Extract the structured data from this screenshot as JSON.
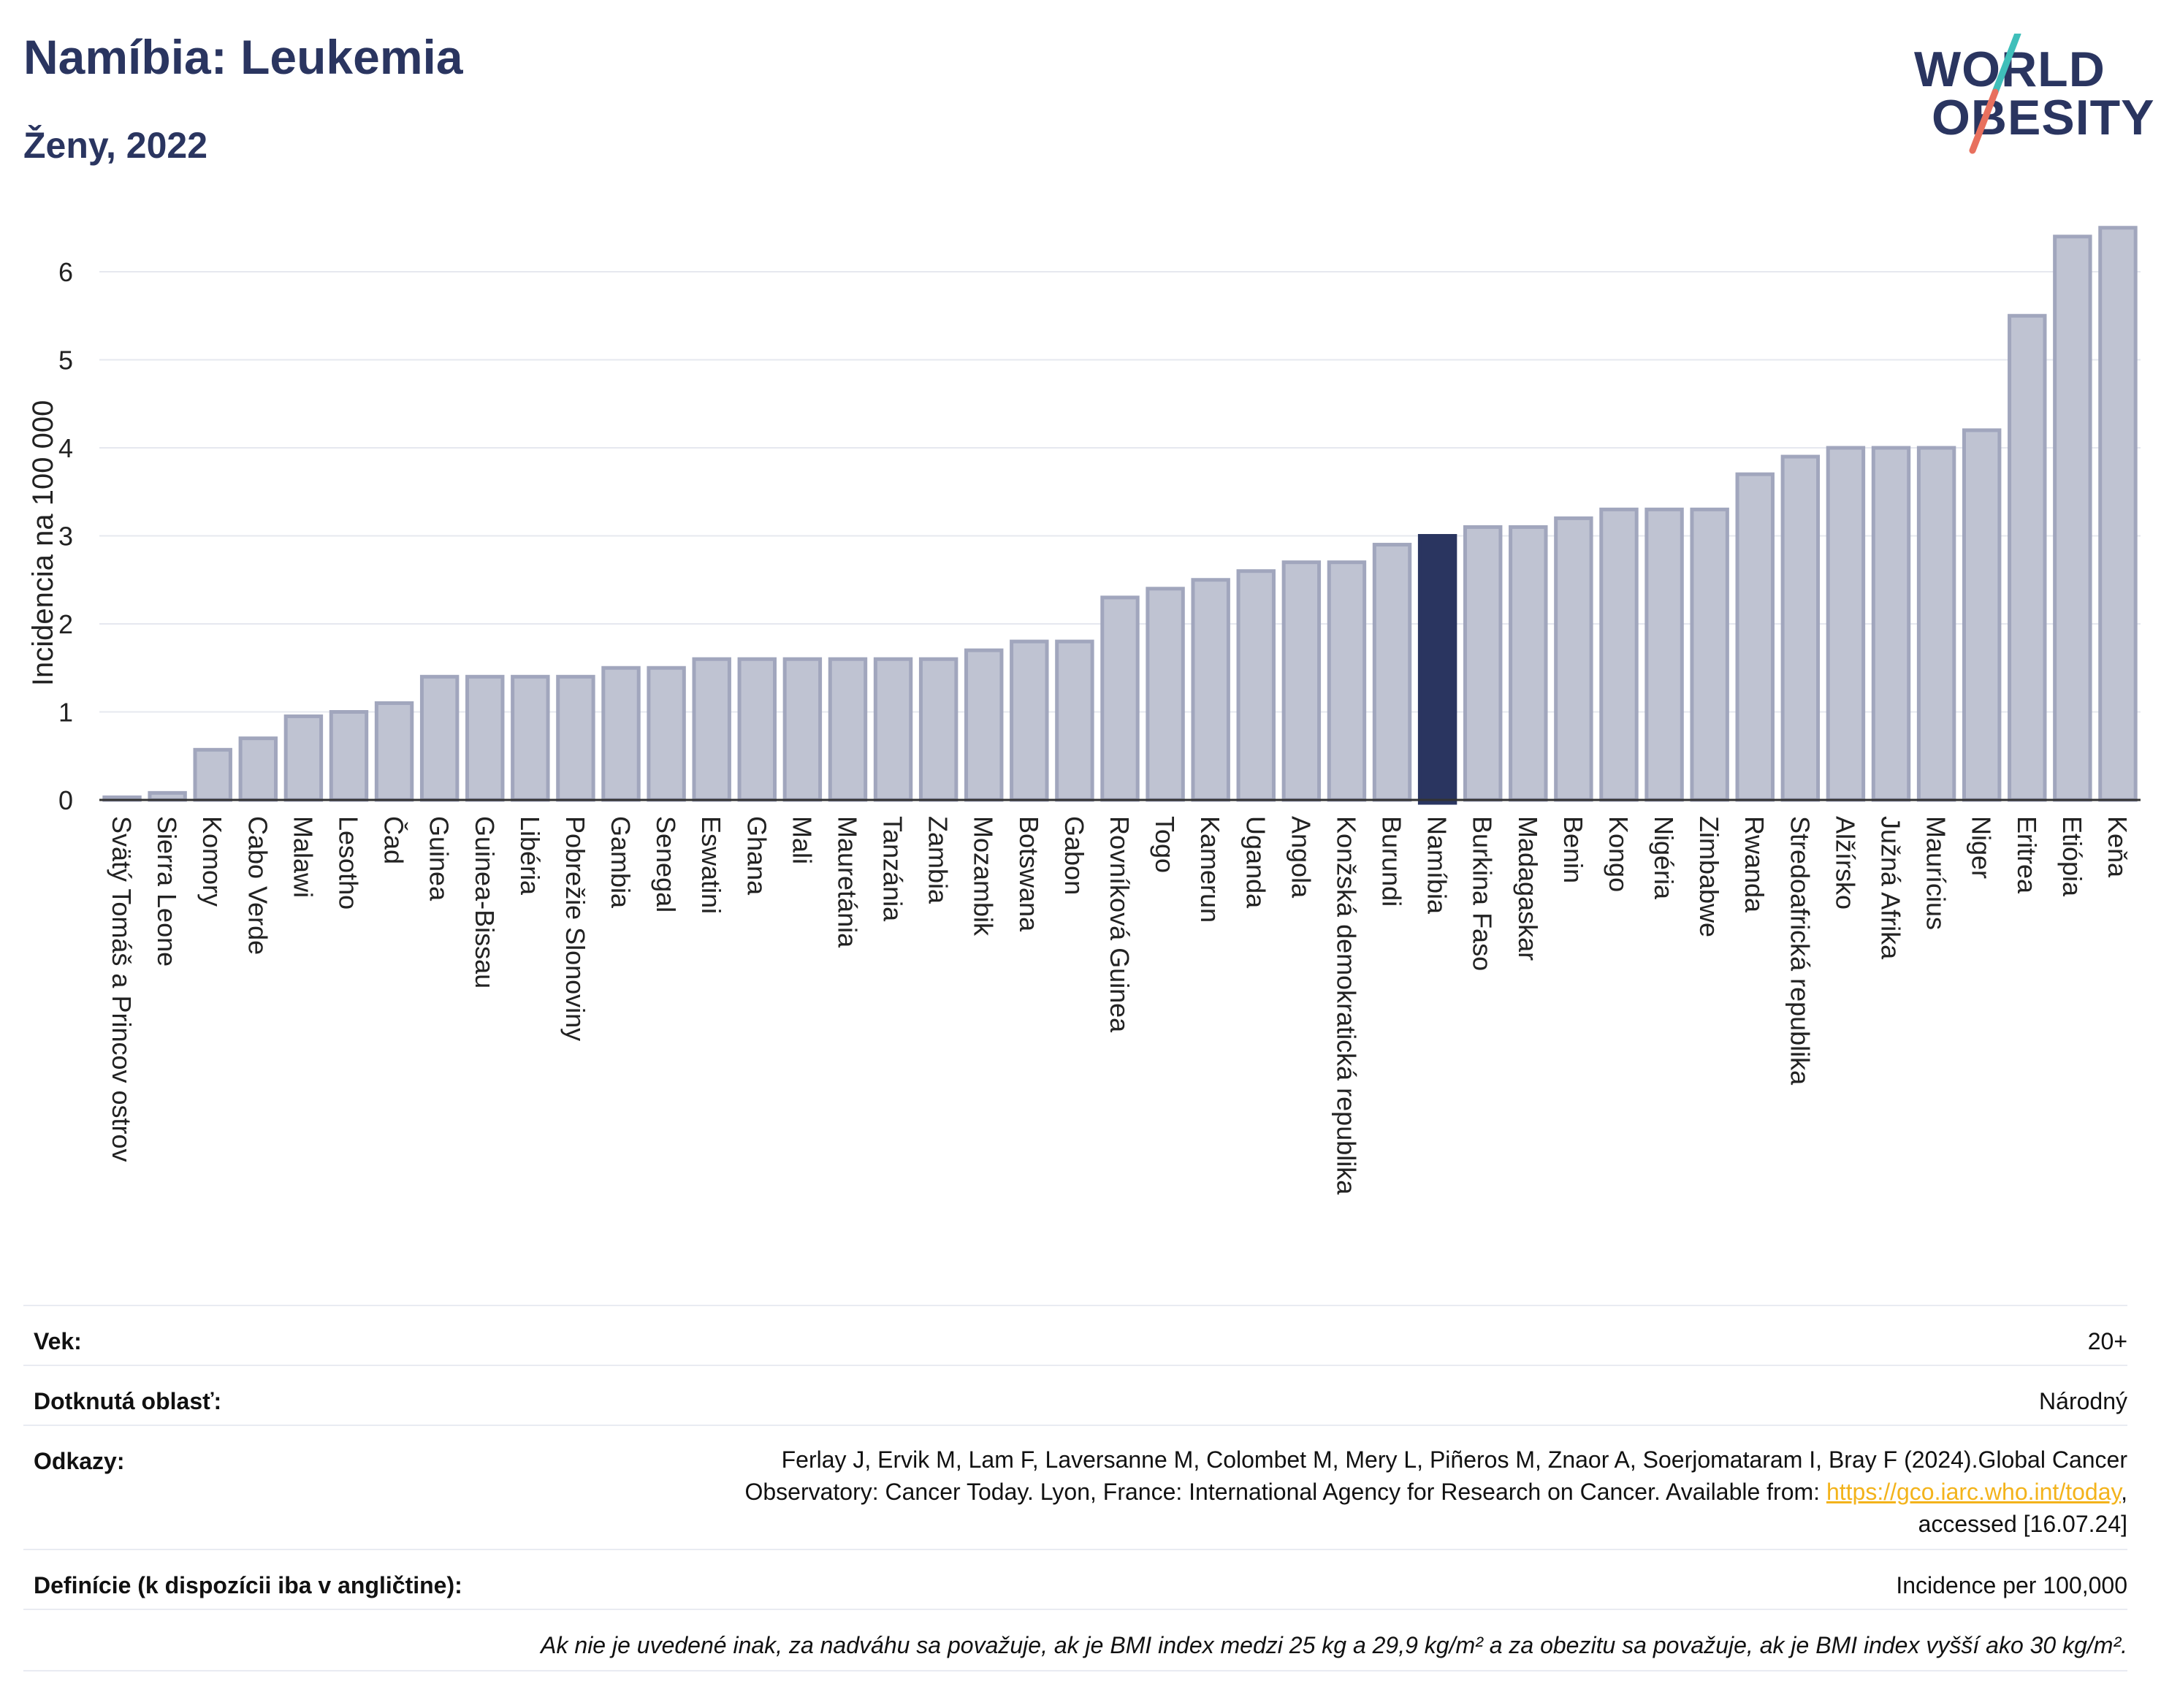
{
  "header": {
    "title": "Namíbia: Leukemia",
    "subtitle": "Ženy, 2022",
    "logo_line1": "WORLD",
    "logo_line2": "OBESITY"
  },
  "colors": {
    "bar": "#bfc3d2",
    "bar_border": "#a1a6bd",
    "highlight": "#2a3560",
    "grid": "#e6e8ef",
    "axis": "#333333",
    "link": "#f3b31b",
    "logo_slash_top": "#3fbfba",
    "logo_slash_bottom": "#e8705e"
  },
  "chart_data": {
    "type": "bar",
    "ylabel": "Incidencia na 100 000",
    "xlabel": "",
    "ylim": [
      0,
      6.8
    ],
    "yticks": [
      0,
      1,
      2,
      3,
      4,
      5,
      6
    ],
    "highlight": "Namíbia",
    "grid": true,
    "categories": [
      "Svätý Tomáš a Princov ostrov",
      "Sierra Leone",
      "Komory",
      "Cabo Verde",
      "Malawi",
      "Lesotho",
      "Čad",
      "Guinea",
      "Guinea-Bissau",
      "Libéria",
      "Pobrežie Slonoviny",
      "Gambia",
      "Senegal",
      "Eswatini",
      "Ghana",
      "Mali",
      "Mauretánia",
      "Tanzánia",
      "Zambia",
      "Mozambik",
      "Botswana",
      "Gabon",
      "Rovníková Guinea",
      "Togo",
      "Kamerun",
      "Uganda",
      "Angola",
      "Konžská demokratická republika",
      "Burundi",
      "Namíbia",
      "Burkina Faso",
      "Madagaskar",
      "Benin",
      "Kongo",
      "Nigéria",
      "Zimbabwe",
      "Rwanda",
      "Stredoafrická republika",
      "Alžírsko",
      "Južná Afrika",
      "Maurícius",
      "Niger",
      "Eritrea",
      "Etiópia",
      "Keňa"
    ],
    "values": [
      0.03,
      0.08,
      0.57,
      0.7,
      0.95,
      1.0,
      1.1,
      1.4,
      1.4,
      1.4,
      1.4,
      1.5,
      1.5,
      1.6,
      1.6,
      1.6,
      1.6,
      1.6,
      1.6,
      1.7,
      1.8,
      1.8,
      2.3,
      2.4,
      2.5,
      2.6,
      2.7,
      2.7,
      2.9,
      3.0,
      3.1,
      3.1,
      3.2,
      3.3,
      3.3,
      3.3,
      3.7,
      3.9,
      4.0,
      4.0,
      4.0,
      4.2,
      5.5,
      6.4,
      6.5
    ]
  },
  "info": {
    "age_label": "Vek:",
    "age_value": "20+",
    "area_label": "Dotknutá oblasť:",
    "area_value": "Národný",
    "refs_label": "Odkazy:",
    "refs_line1": "Ferlay J, Ervik M, Lam F, Laversanne M, Colombet M, Mery L, Piñeros M, Znaor A, Soerjomataram I, Bray F (2024).Global Cancer",
    "refs_line2": "Observatory: Cancer Today. Lyon, France: International Agency for Research on Cancer. Available from: ",
    "refs_link": "https://gco.iarc.who.int/today",
    "refs_line2_end": ",",
    "refs_line3": "accessed [16.07.24]",
    "def_label": "Definície (k dispozícii iba v angličtine):",
    "def_value": "Incidence per 100,000",
    "note": "Ak nie je uvedené inak, za nadváhu sa považuje, ak je BMI index medzi 25 kg a 29,9 kg/m² a za obezitu sa považuje, ak je BMI index vyšší ako 30 kg/m²."
  }
}
